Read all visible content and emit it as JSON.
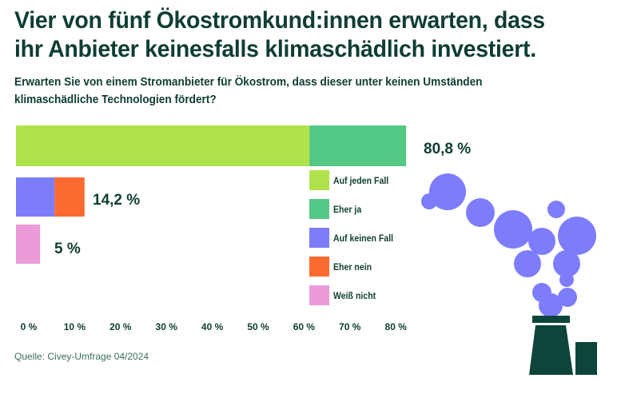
{
  "title_lines": [
    "Vier von fünf Ökostromkund:innen erwarten, dass",
    "ihr Anbieter keinesfalls klimaschädlich investiert."
  ],
  "subtitle_lines": [
    "Erwarten Sie von einem Stromanbieter für Ökostrom, dass dieser unter keinen Umständen",
    "klimaschädliche Technologien fördert?"
  ],
  "source": "Quelle: Civey-Umfrage 04/2024",
  "chart_data": {
    "type": "bar",
    "orientation": "horizontal",
    "stacked": true,
    "xlim": [
      0,
      80
    ],
    "x_ticks": [
      "0 %",
      "10 %",
      "20 %",
      "30 %",
      "40 %",
      "50 %",
      "60 %",
      "70 %",
      "80 %"
    ],
    "grid": false,
    "legend_placement": "right",
    "series_legend": [
      {
        "name": "Auf jeden Fall",
        "color": "#b0e24c"
      },
      {
        "name": "Eher ja",
        "color": "#53c784"
      },
      {
        "name": "Auf keinen Fall",
        "color": "#7d7cfb"
      },
      {
        "name": "Eher nein",
        "color": "#fb6a2f"
      },
      {
        "name": "Weiß nicht",
        "color": "#eb9bd8"
      }
    ],
    "bars": [
      {
        "segments": [
          {
            "series": "Auf jeden Fall",
            "value": 60.8
          },
          {
            "series": "Eher ja",
            "value": 20.0
          }
        ],
        "total_label": "80,8 %"
      },
      {
        "segments": [
          {
            "series": "Auf keinen Fall",
            "value": 8.0
          },
          {
            "series": "Eher nein",
            "value": 6.2
          }
        ],
        "total_label": "14,2 %"
      },
      {
        "segments": [
          {
            "series": "Weiß nicht",
            "value": 5.0
          }
        ],
        "total_label": "5 %"
      }
    ]
  },
  "illustration": {
    "name": "factory-smoke",
    "smoke_color": "#7d7cfb",
    "chimney_color": "#0d453b"
  }
}
